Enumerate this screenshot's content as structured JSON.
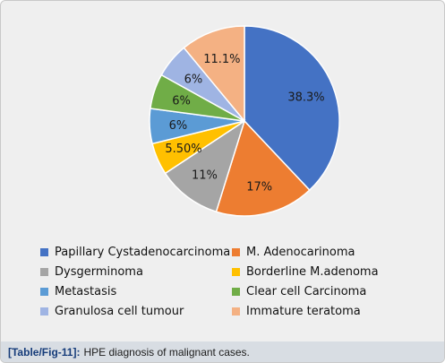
{
  "chart_data": {
    "type": "pie",
    "slices": [
      {
        "name": "Papillary Cystadenocarcinoma",
        "label": "38.3%",
        "value": 38.3,
        "color": "#4472c4"
      },
      {
        "name": "M. Adenocarinoma",
        "label": "17%",
        "value": 17,
        "color": "#ed7d31"
      },
      {
        "name": "Dysgerminoma",
        "label": "11%",
        "value": 11,
        "color": "#a5a5a5"
      },
      {
        "name": "Borderline M.adenoma",
        "label": "5.50%",
        "value": 5.5,
        "color": "#ffc000"
      },
      {
        "name": "Metastasis",
        "label": "6%",
        "value": 6,
        "color": "#5b9bd5"
      },
      {
        "name": "Clear cell Carcinoma",
        "label": "6%",
        "value": 6,
        "color": "#70ad47"
      },
      {
        "name": "Granulosa cell tumour",
        "label": "6%",
        "value": 6,
        "color": "#9fb4e3"
      },
      {
        "name": "Immature teratoma",
        "label": "11.1%",
        "value": 11.1,
        "color": "#f4b183"
      }
    ],
    "legend_position": "bottom"
  },
  "caption": {
    "tag": "[Table/Fig-11]:",
    "text": "HPE diagnosis of malignant cases."
  }
}
